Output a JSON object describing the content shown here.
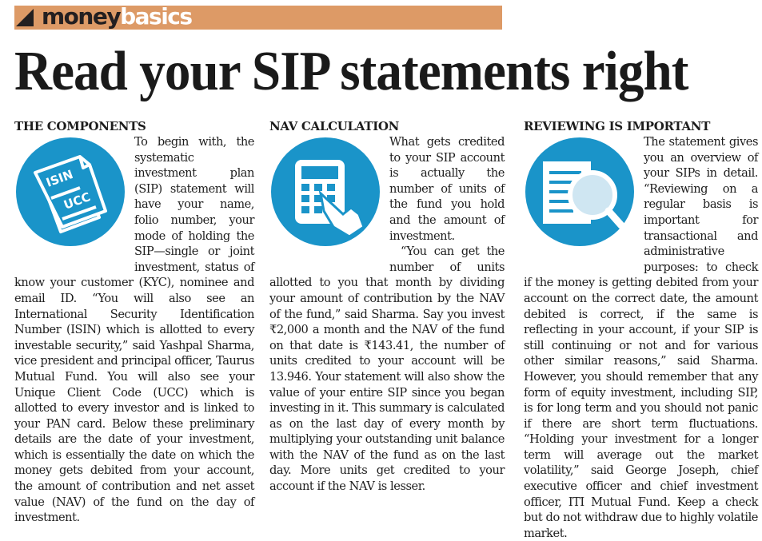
{
  "banner": {
    "brand_dark": "money",
    "brand_light": "basics",
    "color": "#dd9a66"
  },
  "headline": "Read your SIP statements right",
  "accent_color": "#1a94c9",
  "columns": [
    {
      "heading": "THE COMPONENTS",
      "icon": "document-isin-ucc-icon",
      "icon_labels": [
        "ISIN",
        "UCC"
      ],
      "paragraphs": [
        "To begin with, the systematic investment plan (SIP) statement will have your name, folio number, your mode of holding the SIP—single or joint investment, status of know your customer (KYC), nominee and email ID. “You will also see an International Security Identification Number (ISIN) which is allotted to every investable security,” said Yashpal Sharma, vice president and principal officer, Taurus Mutual Fund. You will also see your Unique Client Code (UCC) which is allotted to every investor and is linked to your PAN card. Below these preliminary details are the date of your investment, which is essentially the date on which the money gets debited from your account, the amount of contribution and net asset value (NAV) of the fund on the day of investment."
      ]
    },
    {
      "heading": "NAV CALCULATION",
      "icon": "calculator-hand-icon",
      "paragraphs": [
        "What gets credited to your SIP account is actually the number of units of the fund you hold and the amount of investment.",
        "“You can get the number of units allotted to you that month by dividing your amount of contribution by the NAV of the fund,” said Sharma. Say you invest ₹2,000 a month and the NAV of the fund on that date is ₹143.41, the number of units credited to your account will be 13.946. Your statement will also show the value of your entire SIP since you began investing in it. This summary is calculated as on the last day of every month by multiplying your outstanding unit balance with the NAV of the fund as on the last day. More units get credited to your account if the NAV is lesser."
      ]
    },
    {
      "heading": "REVIEWING IS IMPORTANT",
      "icon": "document-magnifier-icon",
      "paragraphs": [
        "The statement gives you an overview of your SIPs in detail. “Reviewing on a regular basis is important for transactional and administrative purposes: to check if the money is getting debited from your account on the correct date, the amount debited is correct, if the same is reflecting in your account, if your SIP is still continuing or not and for various other similar reasons,” said Sharma. However, you should remember that any form of equity investment, including SIP, is for long term and you should not panic if there are short term fluctuations. “Holding your investment for a longer term will average out the market volatility,” said George Joseph, chief executive officer and chief investment officer, ITI Mutual Fund. Keep a check but do not withdraw due to highly volatile market."
      ]
    }
  ]
}
